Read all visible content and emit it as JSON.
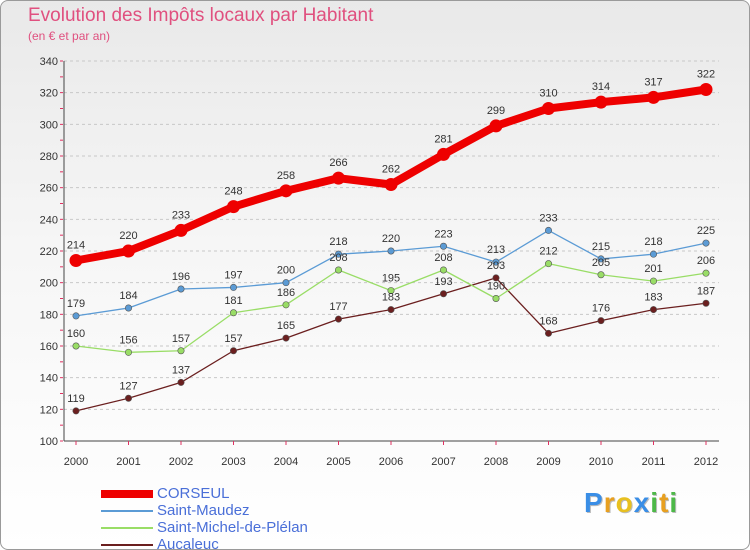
{
  "header": {
    "title": "Evolution des Impôts locaux par Habitant",
    "subtitle": "(en € et par an)"
  },
  "brand": {
    "name": "Proxiti",
    "letter_colors": [
      "#3a8ee6",
      "#e8a020",
      "#e8c020",
      "#3a8ee6",
      "#4db848",
      "#e8a020",
      "#4db848"
    ]
  },
  "chart_data": {
    "type": "line",
    "title": "Evolution des Impôts locaux par Habitant",
    "subtitle": "(en € et par an)",
    "xlabel": "",
    "ylabel": "",
    "categories": [
      "2000",
      "2001",
      "2002",
      "2003",
      "2004",
      "2005",
      "2006",
      "2007",
      "2008",
      "2009",
      "2010",
      "2011",
      "2012"
    ],
    "ylim": [
      100,
      340
    ],
    "yticks": [
      100,
      120,
      140,
      160,
      180,
      200,
      220,
      240,
      260,
      280,
      300,
      320,
      340
    ],
    "grid": "horizontal dashed",
    "legend_position": "bottom-left",
    "series": [
      {
        "name": "CORSEUL",
        "color": "#ee0000",
        "values": [
          214,
          220,
          233,
          248,
          258,
          266,
          262,
          281,
          299,
          310,
          314,
          317,
          322
        ]
      },
      {
        "name": "Saint-Maudez",
        "color": "#5b9bd5",
        "values": [
          179,
          184,
          196,
          197,
          200,
          218,
          220,
          223,
          213,
          233,
          215,
          218,
          225
        ]
      },
      {
        "name": "Saint-Michel-de-Plélan",
        "color": "#99dd66",
        "values": [
          160,
          156,
          157,
          181,
          186,
          208,
          195,
          208,
          190,
          212,
          205,
          201,
          206
        ]
      },
      {
        "name": "Aucaleuc",
        "color": "#6b1f1f",
        "values": [
          119,
          127,
          137,
          157,
          165,
          177,
          183,
          193,
          203,
          168,
          176,
          183,
          187
        ]
      }
    ]
  }
}
